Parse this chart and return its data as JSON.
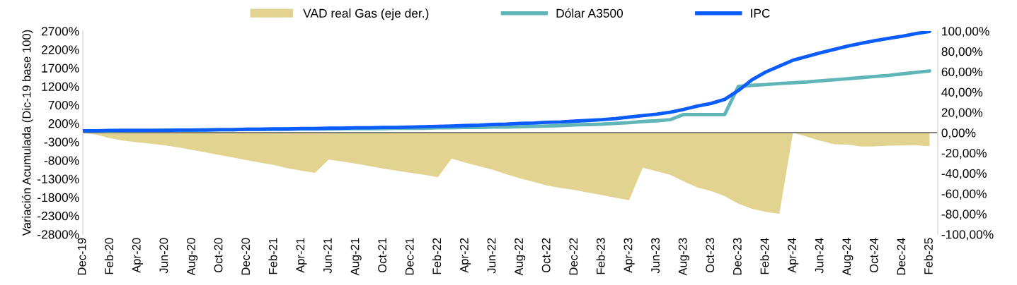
{
  "chart_data": {
    "type": "line",
    "ylabel": "Variación Acumulada (Dic-19 base 100)",
    "categories": [
      "Dec-19",
      null,
      "Feb-20",
      null,
      "Apr-20",
      null,
      "Jun-20",
      null,
      "Aug-20",
      null,
      "Oct-20",
      null,
      "Dec-20",
      null,
      "Feb-21",
      null,
      "Apr-21",
      null,
      "Jun-21",
      null,
      "Aug-21",
      null,
      "Oct-21",
      null,
      "Dec-21",
      null,
      "Feb-22",
      null,
      "Apr-22",
      null,
      "Jun-22",
      null,
      "Aug-22",
      null,
      "Oct-22",
      null,
      "Dec-22",
      null,
      "Feb-23",
      null,
      "Apr-23",
      null,
      "Jun-23",
      null,
      "Aug-23",
      null,
      "Oct-23",
      null,
      "Dec-23",
      null,
      "Feb-24",
      null,
      "Apr-24",
      null,
      "Jun-24",
      null,
      "Aug-24",
      null,
      "Oct-24",
      null,
      "Dec-24",
      null,
      "Feb-25"
    ],
    "series": [
      {
        "name": "VAD real Gas (eje der.)",
        "type": "area",
        "axis": "y2",
        "color": "#e2d490",
        "values": [
          0,
          -2,
          -5.5,
          -8,
          -9.5,
          -11,
          -12.5,
          -14.5,
          -17,
          -19.5,
          -22,
          -24.5,
          -27,
          -29.5,
          -32,
          -35,
          -37.5,
          -39.5,
          -26.5,
          -28.5,
          -30.5,
          -33,
          -35.5,
          -37.5,
          -39.5,
          -41.5,
          -44,
          -25.5,
          -29.5,
          -33,
          -36.5,
          -41,
          -45,
          -48.5,
          -52,
          -54.5,
          -56.5,
          -59,
          -61.5,
          -64,
          -66.5,
          -34.5,
          -38,
          -41.5,
          -48,
          -54,
          -57.5,
          -62.5,
          -70,
          -75,
          -78,
          -80,
          0,
          -4,
          -8,
          -11.5,
          -11.8,
          -13.7,
          -13.5,
          -12.8,
          -12.6,
          -12.5,
          -13.3
        ]
      },
      {
        "name": "Dólar A3500",
        "color": "#5fb5b8",
        "values": [
          0,
          0,
          0,
          10,
          10,
          10,
          20,
          20,
          20,
          30,
          30,
          30,
          40,
          40,
          40,
          40,
          50,
          50,
          50,
          60,
          60,
          60,
          60,
          70,
          70,
          70,
          80,
          80,
          90,
          90,
          100,
          100,
          110,
          120,
          130,
          140,
          160,
          170,
          180,
          200,
          220,
          250,
          270,
          300,
          440,
          440,
          440,
          440,
          1200,
          1230,
          1250,
          1280,
          1300,
          1320,
          1350,
          1380,
          1410,
          1440,
          1470,
          1500,
          1540,
          1580,
          1620
        ]
      },
      {
        "name": "IPC",
        "color": "#0a5cff",
        "values": [
          0,
          0,
          10,
          10,
          10,
          10,
          10,
          20,
          20,
          20,
          30,
          30,
          40,
          40,
          50,
          50,
          60,
          60,
          70,
          70,
          80,
          80,
          90,
          90,
          100,
          110,
          120,
          130,
          140,
          150,
          170,
          180,
          200,
          210,
          230,
          240,
          260,
          280,
          300,
          330,
          370,
          410,
          450,
          500,
          580,
          670,
          740,
          850,
          1090,
          1380,
          1590,
          1750,
          1910,
          2010,
          2110,
          2200,
          2290,
          2370,
          2440,
          2500,
          2560,
          2630,
          2690
        ]
      }
    ],
    "ylim": [
      -2800,
      2700
    ],
    "yticks": [
      {
        "value": 2700,
        "label": "2700%"
      },
      {
        "value": 2200,
        "label": "2200%"
      },
      {
        "value": 1700,
        "label": "1700%"
      },
      {
        "value": 1200,
        "label": "1200%"
      },
      {
        "value": 700,
        "label": "700%"
      },
      {
        "value": 200,
        "label": "200%"
      },
      {
        "value": -300,
        "label": "-300%"
      },
      {
        "value": -800,
        "label": "-800%"
      },
      {
        "value": -1300,
        "label": "-1300%"
      },
      {
        "value": -1800,
        "label": "-1800%"
      },
      {
        "value": -2300,
        "label": "-2300%"
      },
      {
        "value": -2800,
        "label": "-2800%"
      }
    ],
    "y2lim": [
      -100,
      100
    ],
    "y2ticks": [
      {
        "value": 100,
        "label": "100,00%"
      },
      {
        "value": 80,
        "label": "80,00%"
      },
      {
        "value": 60,
        "label": "60,00%"
      },
      {
        "value": 40,
        "label": "40,00%"
      },
      {
        "value": 20,
        "label": "20,00%"
      },
      {
        "value": 0,
        "label": "0,00%"
      },
      {
        "value": -20,
        "label": "-20,00%"
      },
      {
        "value": -40,
        "label": "-40,00%"
      },
      {
        "value": -60,
        "label": "-60,00%"
      },
      {
        "value": -80,
        "label": "-80,00%"
      },
      {
        "value": -100,
        "label": "-100,00%"
      }
    ],
    "ref_lines": [
      {
        "axis": "y2",
        "value": 0,
        "color": "#595959",
        "line_style": "solid"
      }
    ],
    "legend": "top",
    "grid": false,
    "marker": "none"
  }
}
